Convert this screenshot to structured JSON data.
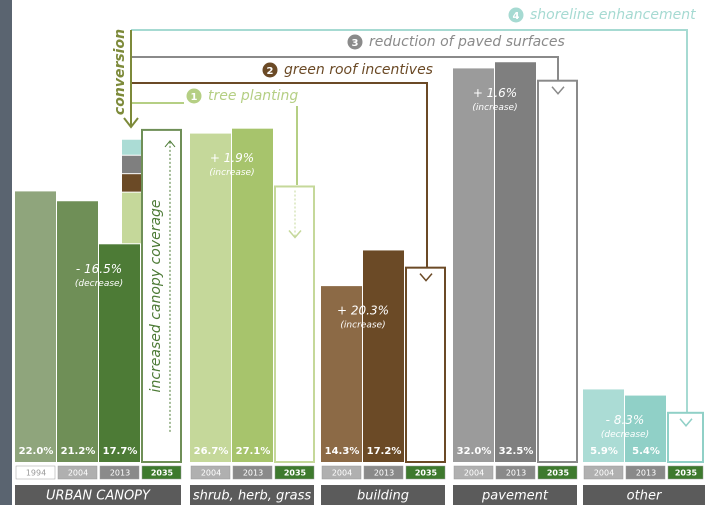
{
  "chart_data": {
    "type": "bar",
    "groups": [
      {
        "name": "URBAN CANOPY",
        "categories": [
          "1994",
          "2004",
          "2013",
          "2035"
        ],
        "values": [
          22.0,
          21.2,
          17.7,
          27
        ],
        "value_labels": [
          "22.0%",
          "21.2%",
          "17.7%",
          null
        ],
        "colors": [
          "#8fa57c",
          "#6f8f57",
          "#4d7b36"
        ],
        "outline_color": "#6f8f57",
        "change": "- 16.5%",
        "change_note": "(decrease)"
      },
      {
        "name": "shrub, herb, grass",
        "categories": [
          "2004",
          "2013",
          "2035"
        ],
        "values": [
          26.7,
          27.1,
          22.4
        ],
        "value_labels": [
          "26.7%",
          "27.1%",
          null
        ],
        "colors": [
          "#c5d89a",
          "#a7c46c"
        ],
        "outline_color": "#c5d89a",
        "change": "+ 1.9%",
        "change_note": "(increase)"
      },
      {
        "name": "building",
        "categories": [
          "2004",
          "2013",
          "2035"
        ],
        "values": [
          14.3,
          17.2,
          15.8
        ],
        "value_labels": [
          "14.3%",
          "17.2%",
          null
        ],
        "colors": [
          "#8c6a46",
          "#6b4a26"
        ],
        "outline_color": "#6b4a26",
        "change": "+ 20.3%",
        "change_note": "(increase)"
      },
      {
        "name": "pavement",
        "categories": [
          "2004",
          "2013",
          "2035"
        ],
        "values": [
          32.0,
          32.5,
          31
        ],
        "value_labels": [
          "32.0%",
          "32.5%",
          null
        ],
        "colors": [
          "#9b9b9b",
          "#7f7f7f"
        ],
        "outline_color": "#8a8a8a",
        "change": "+ 1.6%",
        "change_note": "(increase)"
      },
      {
        "name": "other",
        "categories": [
          "2004",
          "2013",
          "2035"
        ],
        "values": [
          5.9,
          5.4,
          4
        ],
        "value_labels": [
          "5.9%",
          "5.4%",
          null
        ],
        "colors": [
          "#abdcd5",
          "#90d0c7"
        ],
        "outline_color": "#90d0c7",
        "change": "- 8.3%",
        "change_note": "(decrease)"
      }
    ],
    "conversion": {
      "label": "conversion",
      "segments": [
        {
          "color": "#c5d89a",
          "value": 4.2
        },
        {
          "color": "#6b4a26",
          "value": 1.5
        },
        {
          "color": "#7f7f7f",
          "value": 1.5
        },
        {
          "color": "#abdcd5",
          "value": 1.3
        }
      ]
    },
    "projection_label": "increased canopy coverage",
    "annotations": [
      {
        "step": "1",
        "text": "tree planting",
        "color": "#b5cf84"
      },
      {
        "step": "2",
        "text": "green roof incentives",
        "color": "#6b4a26"
      },
      {
        "step": "3",
        "text": "reduction of paved surfaces",
        "color": "#8a8a8a"
      },
      {
        "step": "4",
        "text": "shoreline enhancement",
        "color": "#a6dad2"
      }
    ]
  }
}
